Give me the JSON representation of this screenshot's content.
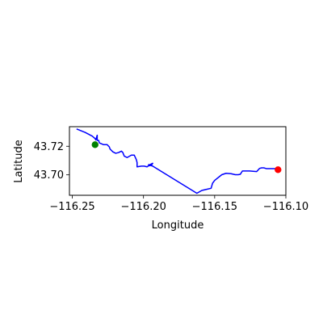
{
  "chart_data": {
    "type": "line",
    "title": "",
    "xlabel": "Longitude",
    "ylabel": "Latitude",
    "xlim": [
      -116.252,
      -116.1
    ],
    "ylim": [
      43.6857,
      43.7337
    ],
    "grid": false,
    "legend": "none",
    "xticks": [
      {
        "value": -116.25,
        "label": "−116.25"
      },
      {
        "value": -116.2,
        "label": "−116.20"
      },
      {
        "value": -116.15,
        "label": "−116.15"
      },
      {
        "value": -116.1,
        "label": "−116.10"
      }
    ],
    "yticks": [
      {
        "value": 43.72,
        "label": "43.72"
      },
      {
        "value": 43.7,
        "label": "43.70"
      }
    ],
    "series": [
      {
        "color": "#0000ff",
        "style": "line",
        "x": [
          -116.247,
          -116.241,
          -116.236,
          -116.234,
          -116.2335,
          -116.2325,
          -116.2325,
          -116.2315,
          -116.231,
          -116.228,
          -116.2255,
          -116.224,
          -116.2235,
          -116.2215,
          -116.2195,
          -116.2175,
          -116.2155,
          -116.2145,
          -116.2135,
          -116.2115,
          -116.2085,
          -116.2065,
          -116.205,
          -116.2045,
          -116.2045,
          -116.2015,
          -116.1995,
          -116.1975,
          -116.1965,
          -116.1945,
          -116.1935,
          -116.1955,
          -116.1965,
          -116.1935,
          -116.1625,
          -116.159,
          -116.1525,
          -116.1515,
          -116.15,
          -116.145,
          -116.142,
          -116.1385,
          -116.1355,
          -116.1335,
          -116.132,
          -116.1305,
          -116.1255,
          -116.1205,
          -116.1185,
          -116.117,
          -116.1155,
          -116.1135,
          -116.1115,
          -116.1095,
          -116.1075,
          -116.1055
        ],
        "y": [
          43.7321,
          43.7297,
          43.7271,
          43.7254,
          43.7244,
          43.7277,
          43.7241,
          43.7241,
          43.7224,
          43.7211,
          43.7211,
          43.7196,
          43.7181,
          43.7161,
          43.7151,
          43.7156,
          43.7166,
          43.7156,
          43.7131,
          43.7121,
          43.7138,
          43.7138,
          43.7106,
          43.7086,
          43.7056,
          43.7061,
          43.7061,
          43.7056,
          43.7063,
          43.7066,
          43.7081,
          43.7071,
          43.7071,
          43.7061,
          43.6871,
          43.6891,
          43.6906,
          43.6941,
          43.6961,
          43.7001,
          43.7011,
          43.7008,
          43.7001,
          43.7001,
          43.7004,
          43.7027,
          43.7027,
          43.7023,
          43.7045,
          43.7049,
          43.7049,
          43.7043,
          43.7043,
          43.7043,
          43.7043,
          43.7036
        ]
      },
      {
        "color": "#008000",
        "style": "point",
        "x": [
          -116.234
        ],
        "y": [
          43.7211
        ]
      },
      {
        "color": "#ff0000",
        "style": "point",
        "x": [
          -116.1055
        ],
        "y": [
          43.7036
        ]
      }
    ]
  }
}
